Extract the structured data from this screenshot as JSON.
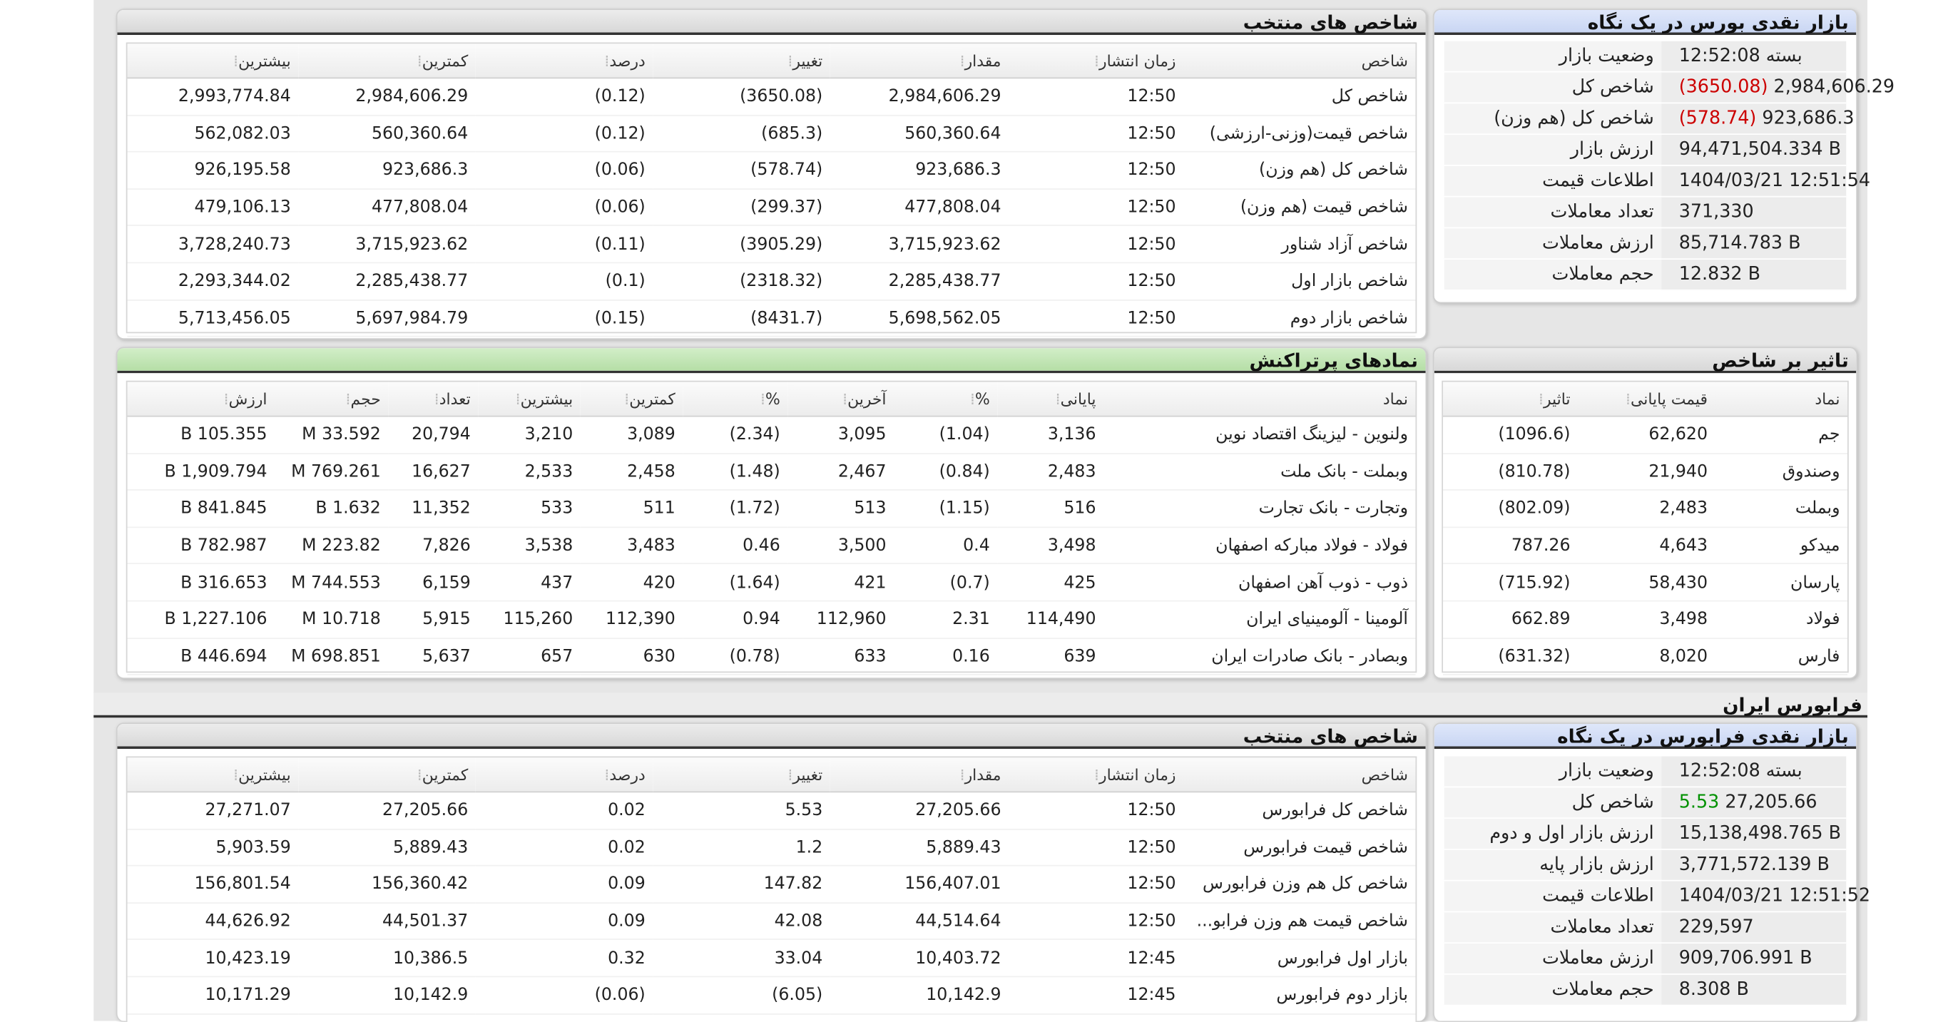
{
  "colors": {
    "negative": "#cc0000",
    "positive": "#009100",
    "title_blue": "#dfe7fa",
    "title_green": "#c9e9bd"
  },
  "bourse_glance": {
    "title": "بازار نقدی بورس در یک نگاه",
    "rows": [
      {
        "label": "وضعیت بازار",
        "value": "بسته 12:52:08"
      },
      {
        "label": "شاخص کل",
        "value": "2,984,606.29",
        "change": "(3650.08)"
      },
      {
        "label": "شاخص کل (هم وزن)",
        "value": "923,686.3",
        "change": "(578.74)"
      },
      {
        "label": "ارزش بازار",
        "value": "94,471,504.334 B"
      },
      {
        "label": "اطلاعات قیمت",
        "value": "1404/03/21 12:51:54"
      },
      {
        "label": "تعداد معاملات",
        "value": "371,330"
      },
      {
        "label": "ارزش معاملات",
        "value": "85,714.783 B"
      },
      {
        "label": "حجم معاملات",
        "value": "12.832 B"
      }
    ]
  },
  "bourse_indices": {
    "title": "شاخص های منتخب",
    "headers": [
      "شاخص",
      "زمان انتشار",
      "مقدار",
      "تغییر",
      "درصد",
      "کمترین",
      "بیشترین"
    ],
    "rows": [
      {
        "name": "شاخص کل",
        "time": "12:50",
        "value": "2,984,606.29",
        "change": "(3650.08)",
        "percent": "(0.12)",
        "min": "2,984,606.29",
        "max": "2,993,774.84"
      },
      {
        "name": "شاخص قیمت(وزنی-ارزشی)",
        "time": "12:50",
        "value": "560,360.64",
        "change": "(685.3)",
        "percent": "(0.12)",
        "min": "560,360.64",
        "max": "562,082.03"
      },
      {
        "name": "شاخص کل (هم وزن)",
        "time": "12:50",
        "value": "923,686.3",
        "change": "(578.74)",
        "percent": "(0.06)",
        "min": "923,686.3",
        "max": "926,195.58"
      },
      {
        "name": "شاخص قیمت (هم وزن)",
        "time": "12:50",
        "value": "477,808.04",
        "change": "(299.37)",
        "percent": "(0.06)",
        "min": "477,808.04",
        "max": "479,106.13"
      },
      {
        "name": "شاخص آزاد شناور",
        "time": "12:50",
        "value": "3,715,923.62",
        "change": "(3905.29)",
        "percent": "(0.11)",
        "min": "3,715,923.62",
        "max": "3,728,240.73"
      },
      {
        "name": "شاخص بازار اول",
        "time": "12:50",
        "value": "2,285,438.77",
        "change": "(2318.32)",
        "percent": "(0.1)",
        "min": "2,285,438.77",
        "max": "2,293,344.02"
      },
      {
        "name": "شاخص بازار دوم",
        "time": "12:50",
        "value": "5,698,562.05",
        "change": "(8431.7)",
        "percent": "(0.15)",
        "min": "5,697,984.79",
        "max": "5,713,456.05"
      }
    ]
  },
  "index_impact": {
    "title": "تاثیر بر شاخص",
    "headers": [
      "نماد",
      "قیمت پایانی",
      "تاثیر"
    ],
    "rows": [
      {
        "symbol": "جم",
        "close": "62,620",
        "impact": "(1096.6)"
      },
      {
        "symbol": "وصندوق",
        "close": "21,940",
        "impact": "(810.78)"
      },
      {
        "symbol": "وبملت",
        "close": "2,483",
        "impact": "(802.09)"
      },
      {
        "symbol": "میدکو",
        "close": "4,643",
        "impact": "787.26"
      },
      {
        "symbol": "پارسان",
        "close": "58,430",
        "impact": "(715.92)"
      },
      {
        "symbol": "فولاد",
        "close": "3,498",
        "impact": "662.89"
      },
      {
        "symbol": "فارس",
        "close": "8,020",
        "impact": "(631.32)"
      }
    ]
  },
  "active_symbols": {
    "title": "نمادهای پرتراکنش",
    "headers": [
      "نماد",
      "پایانی",
      "%",
      "آخرین",
      "%",
      "کمترین",
      "بیشترین",
      "تعداد",
      "حجم",
      "ارزش"
    ],
    "rows": [
      {
        "symbol": "ولنوین - لیزینگ اقتصاد نوین",
        "close": "3,136",
        "close_pct": "(1.04)",
        "last": "3,095",
        "last_pct": "(2.34)",
        "min": "3,089",
        "max": "3,210",
        "count": "20,794",
        "volume": "33.592 M",
        "value": "105.355 B"
      },
      {
        "symbol": "وبملت - بانک ملت",
        "close": "2,483",
        "close_pct": "(0.84)",
        "last": "2,467",
        "last_pct": "(1.48)",
        "min": "2,458",
        "max": "2,533",
        "count": "16,627",
        "volume": "769.261 M",
        "value": "1,909.794 B"
      },
      {
        "symbol": "وتجارت - بانک تجارت",
        "close": "516",
        "close_pct": "(1.15)",
        "last": "513",
        "last_pct": "(1.72)",
        "min": "511",
        "max": "533",
        "count": "11,352",
        "volume": "1.632 B",
        "value": "841.845 B"
      },
      {
        "symbol": "فولاد - فولاد مبارکه اصفهان",
        "close": "3,498",
        "close_pct": "0.4",
        "last": "3,500",
        "last_pct": "0.46",
        "min": "3,483",
        "max": "3,538",
        "count": "7,826",
        "volume": "223.82 M",
        "value": "782.987 B"
      },
      {
        "symbol": "ذوب - ذوب آهن اصفهان",
        "close": "425",
        "close_pct": "(0.7)",
        "last": "421",
        "last_pct": "(1.64)",
        "min": "420",
        "max": "437",
        "count": "6,159",
        "volume": "744.553 M",
        "value": "316.653 B"
      },
      {
        "symbol": "آلومینا - آلومينيای ایران",
        "close": "114,490",
        "close_pct": "2.31",
        "last": "112,960",
        "last_pct": "0.94",
        "min": "112,390",
        "max": "115,260",
        "count": "5,915",
        "volume": "10.718 M",
        "value": "1,227.106 B"
      },
      {
        "symbol": "وبصادر - بانک صادرات ایران",
        "close": "639",
        "close_pct": "0.16",
        "last": "633",
        "last_pct": "(0.78)",
        "min": "630",
        "max": "657",
        "count": "5,637",
        "volume": "698.851 M",
        "value": "446.694 B"
      }
    ]
  },
  "farabourse_section": {
    "title": "فرابورس ایران"
  },
  "farabourse_glance": {
    "title": "بازار نقدی فرابورس در یک نگاه",
    "rows": [
      {
        "label": "وضعیت بازار",
        "value": "بسته 12:52:08"
      },
      {
        "label": "شاخص کل",
        "value": "27,205.66",
        "change": "5.53"
      },
      {
        "label": "ارزش بازار اول و دوم",
        "value": "15,138,498.765 B"
      },
      {
        "label": "ارزش بازار پایه",
        "value": "3,771,572.139 B"
      },
      {
        "label": "اطلاعات قیمت",
        "value": "1404/03/21 12:51:52"
      },
      {
        "label": "تعداد معاملات",
        "value": "229,597"
      },
      {
        "label": "ارزش معاملات",
        "value": "909,706.991 B"
      },
      {
        "label": "حجم معاملات",
        "value": "8.308 B"
      }
    ]
  },
  "farabourse_indices": {
    "title": "شاخص های منتخب",
    "headers": [
      "شاخص",
      "زمان انتشار",
      "مقدار",
      "تغییر",
      "درصد",
      "کمترین",
      "بیشترین"
    ],
    "rows": [
      {
        "name": "شاخص کل فرابورس",
        "time": "12:50",
        "value": "27,205.66",
        "change": "5.53",
        "percent": "0.02",
        "min": "27,205.66",
        "max": "27,271.07"
      },
      {
        "name": "شاخص قیمت فرابورس",
        "time": "12:50",
        "value": "5,889.43",
        "change": "1.2",
        "percent": "0.02",
        "min": "5,889.43",
        "max": "5,903.59"
      },
      {
        "name": "شاخص کل هم وزن فرابورس",
        "time": "12:50",
        "value": "156,407.01",
        "change": "147.82",
        "percent": "0.09",
        "min": "156,360.42",
        "max": "156,801.54"
      },
      {
        "name": "شاخص قیمت هم وزن فرابو...",
        "time": "12:50",
        "value": "44,514.64",
        "change": "42.08",
        "percent": "0.09",
        "min": "44,501.37",
        "max": "44,626.92"
      },
      {
        "name": "بازار اول فرابورس",
        "time": "12:45",
        "value": "10,403.72",
        "change": "33.04",
        "percent": "0.32",
        "min": "10,386.5",
        "max": "10,423.19"
      },
      {
        "name": "بازار دوم فرابورس",
        "time": "12:45",
        "value": "10,142.9",
        "change": "(6.05)",
        "percent": "(0.06)",
        "min": "10,142.9",
        "max": "10,171.29"
      }
    ]
  }
}
